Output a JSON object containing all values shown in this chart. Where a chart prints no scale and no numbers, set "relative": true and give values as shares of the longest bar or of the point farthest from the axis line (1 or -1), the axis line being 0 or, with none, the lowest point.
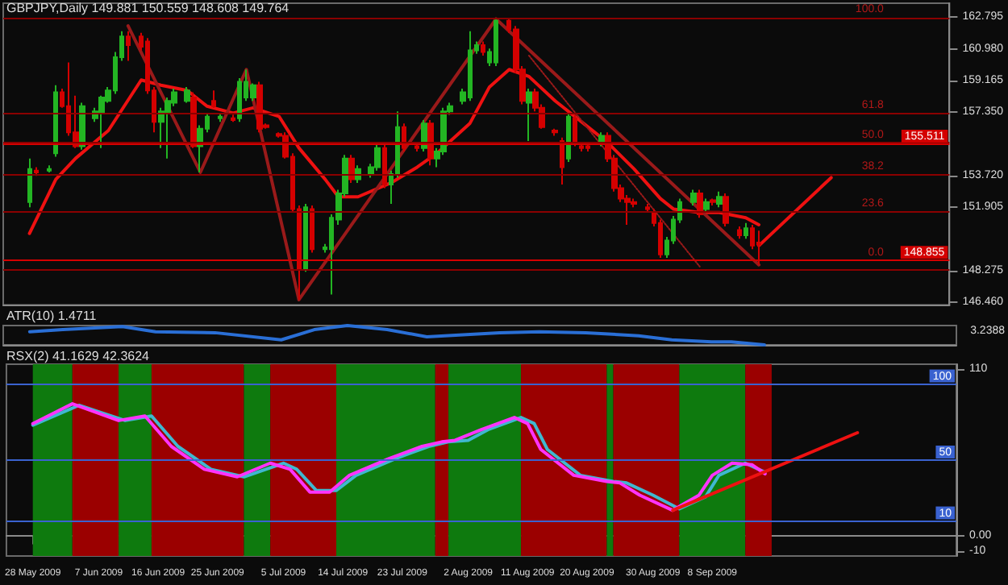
{
  "chart_data": [
    {
      "type": "candlestick",
      "title": "GBPJPY,Daily 149.881 150.559 148.608 149.764",
      "tick_labels": "y",
      "x": [
        "2009-05-28",
        "2009-05-29",
        "2009-05-31",
        "2009-06-01",
        "2009-06-02",
        "2009-06-03",
        "2009-06-04",
        "2009-06-05",
        "2009-06-07",
        "2009-06-08",
        "2009-06-09",
        "2009-06-10",
        "2009-06-11",
        "2009-06-12",
        "2009-06-14",
        "2009-06-15",
        "2009-06-16",
        "2009-06-17",
        "2009-06-18",
        "2009-06-19",
        "2009-06-21",
        "2009-06-22",
        "2009-06-23",
        "2009-06-24",
        "2009-06-25",
        "2009-06-26",
        "2009-06-28",
        "2009-06-29",
        "2009-06-30",
        "2009-07-01",
        "2009-07-02",
        "2009-07-03",
        "2009-07-05",
        "2009-07-06",
        "2009-07-07",
        "2009-07-08",
        "2009-07-09",
        "2009-07-10",
        "2009-07-12",
        "2009-07-13",
        "2009-07-14",
        "2009-07-15",
        "2009-07-16",
        "2009-07-17",
        "2009-07-19",
        "2009-07-20",
        "2009-07-21",
        "2009-07-22",
        "2009-07-23",
        "2009-07-24",
        "2009-07-26",
        "2009-07-27",
        "2009-07-28",
        "2009-07-29",
        "2009-07-30",
        "2009-07-31",
        "2009-08-02",
        "2009-08-03",
        "2009-08-04",
        "2009-08-05",
        "2009-08-06",
        "2009-08-07",
        "2009-08-09",
        "2009-08-10",
        "2009-08-11",
        "2009-08-12",
        "2009-08-13",
        "2009-08-14",
        "2009-08-16",
        "2009-08-17",
        "2009-08-18",
        "2009-08-19",
        "2009-08-20",
        "2009-08-21",
        "2009-08-23",
        "2009-08-24",
        "2009-08-25",
        "2009-08-26",
        "2009-08-27",
        "2009-08-28",
        "2009-08-30",
        "2009-08-31",
        "2009-09-01",
        "2009-09-02",
        "2009-09-03",
        "2009-09-04",
        "2009-09-06",
        "2009-09-07",
        "2009-09-08",
        "2009-09-09",
        "2009-09-10",
        "2009-09-11",
        "2009-09-13",
        "2009-09-14",
        "2009-09-15",
        "2009-09-16"
      ],
      "ohlc": [
        [
          152.2,
          154.7,
          151.9,
          154.1
        ],
        [
          154.0,
          154.2,
          153.7,
          153.9
        ],
        [
          154.0,
          154.3,
          153.9,
          154.1
        ],
        [
          155.0,
          158.9,
          154.8,
          158.5
        ],
        [
          158.5,
          158.7,
          157.6,
          157.7
        ],
        [
          157.7,
          160.2,
          156.0,
          156.2
        ],
        [
          156.2,
          158.3,
          155.3,
          155.4
        ],
        [
          155.4,
          157.9,
          155.2,
          157.7
        ],
        [
          157.0,
          157.6,
          156.8,
          157.4
        ],
        [
          157.3,
          158.3,
          155.3,
          158.2
        ],
        [
          158.0,
          158.8,
          157.9,
          158.6
        ],
        [
          158.6,
          160.8,
          158.4,
          160.5
        ],
        [
          160.5,
          162.0,
          160.3,
          161.7
        ],
        [
          161.7,
          162.0,
          160.3,
          161.2
        ],
        [
          161.7,
          161.9,
          160.9,
          161.1
        ],
        [
          161.4,
          161.6,
          158.4,
          158.6
        ],
        [
          158.6,
          158.8,
          156.2,
          156.8
        ],
        [
          156.8,
          157.6,
          155.3,
          157.4
        ],
        [
          157.3,
          158.2,
          154.7,
          158.0
        ],
        [
          157.9,
          158.7,
          157.7,
          158.5
        ],
        [
          158.0,
          158.8,
          157.9,
          158.6
        ],
        [
          158.2,
          158.5,
          155.3,
          155.4
        ],
        [
          155.4,
          156.6,
          153.9,
          156.4
        ],
        [
          156.4,
          157.3,
          156.2,
          157.1
        ],
        [
          158.0,
          158.6,
          157.6,
          157.7
        ],
        [
          157.0,
          157.3,
          156.8,
          157.1
        ],
        [
          157.0,
          157.2,
          156.8,
          156.9
        ],
        [
          157.0,
          159.3,
          156.8,
          159.1
        ],
        [
          158.2,
          159.8,
          158.0,
          159.1
        ],
        [
          158.2,
          159.0,
          158.0,
          158.9
        ],
        [
          158.9,
          159.1,
          156.2,
          156.4
        ],
        [
          156.6,
          156.7,
          156.4,
          156.5
        ],
        [
          156.1,
          156.2,
          155.9,
          156.0
        ],
        [
          156.0,
          156.2,
          154.7,
          154.8
        ],
        [
          154.8,
          155.0,
          151.6,
          151.8
        ],
        [
          151.8,
          152.0,
          146.6,
          148.4
        ],
        [
          148.4,
          152.1,
          148.2,
          151.9
        ],
        [
          151.8,
          152.0,
          149.3,
          149.5
        ],
        [
          149.5,
          149.8,
          149.3,
          149.6
        ],
        [
          149.5,
          151.5,
          146.9,
          151.3
        ],
        [
          151.2,
          152.9,
          150.9,
          152.7
        ],
        [
          152.7,
          154.9,
          152.5,
          154.7
        ],
        [
          154.7,
          154.9,
          153.3,
          153.5
        ],
        [
          153.5,
          154.3,
          153.3,
          154.1
        ],
        [
          153.8,
          154.4,
          153.6,
          154.2
        ],
        [
          154.2,
          155.6,
          154.0,
          155.3
        ],
        [
          155.3,
          155.5,
          153.0,
          153.2
        ],
        [
          153.2,
          154.0,
          152.1,
          153.8
        ],
        [
          153.8,
          157.4,
          153.6,
          156.5
        ],
        [
          156.5,
          156.7,
          155.1,
          155.3
        ],
        [
          155.4,
          155.5,
          155.1,
          155.3
        ],
        [
          155.3,
          156.9,
          155.1,
          156.7
        ],
        [
          156.7,
          156.9,
          154.3,
          154.7
        ],
        [
          154.7,
          155.3,
          154.2,
          155.1
        ],
        [
          155.1,
          157.6,
          154.9,
          157.4
        ],
        [
          157.4,
          157.9,
          157.2,
          157.7
        ],
        [
          158.0,
          158.7,
          157.8,
          158.5
        ],
        [
          158.2,
          162.0,
          158.0,
          160.9
        ],
        [
          160.9,
          161.4,
          160.7,
          161.2
        ],
        [
          161.2,
          161.4,
          160.6,
          160.8
        ],
        [
          160.2,
          161.0,
          160.0,
          160.8
        ],
        [
          160.2,
          162.7,
          160.0,
          162.6
        ],
        [
          162.6,
          162.7,
          161.9,
          162.1
        ],
        [
          162.1,
          162.3,
          159.6,
          159.8
        ],
        [
          159.8,
          160.0,
          157.8,
          158.0
        ],
        [
          157.9,
          158.7,
          155.7,
          158.5
        ],
        [
          158.5,
          158.7,
          157.4,
          157.6
        ],
        [
          157.6,
          157.8,
          156.4,
          156.5
        ],
        [
          156.3,
          156.4,
          156.0,
          156.2
        ],
        [
          155.7,
          155.9,
          153.2,
          154.2
        ],
        [
          154.7,
          157.3,
          154.5,
          157.1
        ],
        [
          157.0,
          157.2,
          155.4,
          155.6
        ],
        [
          155.4,
          155.6,
          155.1,
          155.3
        ],
        [
          155.4,
          155.5,
          155.1,
          155.3
        ],
        [
          155.6,
          156.2,
          155.4,
          156.0
        ],
        [
          156.0,
          156.2,
          154.5,
          154.7
        ],
        [
          154.7,
          154.9,
          152.8,
          153.0
        ],
        [
          153.0,
          153.2,
          152.2,
          152.4
        ],
        [
          152.4,
          152.6,
          150.9,
          152.2
        ],
        [
          152.2,
          152.4,
          151.9,
          152.1
        ],
        [
          151.9,
          152.1,
          151.6,
          151.8
        ],
        [
          151.6,
          151.8,
          150.8,
          151.0
        ],
        [
          151.0,
          151.2,
          149.0,
          149.2
        ],
        [
          149.2,
          150.2,
          149.0,
          150.0
        ],
        [
          150.0,
          151.4,
          149.8,
          151.2
        ],
        [
          151.2,
          152.4,
          151.0,
          152.2
        ],
        [
          152.2,
          152.9,
          152.0,
          152.7
        ],
        [
          152.7,
          152.9,
          151.3,
          151.5
        ],
        [
          151.8,
          152.4,
          151.6,
          152.2
        ],
        [
          152.3,
          152.4,
          152.0,
          152.2
        ],
        [
          152.1,
          152.8,
          151.9,
          152.5
        ],
        [
          152.5,
          152.7,
          150.8,
          151.0
        ],
        [
          150.6,
          150.8,
          150.1,
          150.3
        ],
        [
          150.3,
          151.0,
          150.1,
          150.7
        ],
        [
          150.7,
          150.9,
          149.5,
          149.7
        ],
        [
          149.881,
          150.559,
          148.608,
          149.764
        ]
      ],
      "colors": [
        "#23b523",
        "#d40000",
        "#23b523",
        "#23b523",
        "#d40000",
        "#d40000",
        "#d40000",
        "#23b523",
        "#23b523",
        "#23b523",
        "#23b523",
        "#23b523",
        "#23b523",
        "#d40000",
        "#d40000",
        "#d40000",
        "#d40000",
        "#23b523",
        "#23b523",
        "#23b523",
        "#23b523",
        "#d40000",
        "#23b523",
        "#23b523",
        "#d40000",
        "#23b523",
        "#d40000",
        "#23b523",
        "#23b523",
        "#23b523",
        "#d40000",
        "#d40000",
        "#d40000",
        "#d40000",
        "#d40000",
        "#d40000",
        "#23b523",
        "#d40000",
        "#23b523",
        "#23b523",
        "#23b523",
        "#23b523",
        "#d40000",
        "#23b523",
        "#23b523",
        "#23b523",
        "#d40000",
        "#23b523",
        "#23b523",
        "#d40000",
        "#d40000",
        "#23b523",
        "#d40000",
        "#23b523",
        "#23b523",
        "#23b523",
        "#23b523",
        "#23b523",
        "#23b523",
        "#d40000",
        "#23b523",
        "#23b523",
        "#d40000",
        "#d40000",
        "#d40000",
        "#23b523",
        "#d40000",
        "#d40000",
        "#d40000",
        "#d40000",
        "#23b523",
        "#d40000",
        "#d40000",
        "#d40000",
        "#23b523",
        "#d40000",
        "#d40000",
        "#d40000",
        "#d40000",
        "#d40000",
        "#d40000",
        "#d40000",
        "#d40000",
        "#23b523",
        "#23b523",
        "#23b523",
        "#23b523",
        "#d40000",
        "#23b523",
        "#d40000",
        "#23b523",
        "#d40000",
        "#d40000",
        "#23b523",
        "#d40000",
        "#d40000"
      ],
      "xlim": [
        "2009-05-24",
        "2009-10-15"
      ],
      "ylim": [
        146.3,
        163.6
      ],
      "yticks": [
        {
          "value": 162.795,
          "label": "162.795"
        },
        {
          "value": 160.98,
          "label": "160.980"
        },
        {
          "value": 159.165,
          "label": "159.165"
        },
        {
          "value": 157.35,
          "label": "157.350"
        },
        {
          "value": 153.72,
          "label": "153.720"
        },
        {
          "value": 151.905,
          "label": "151.905"
        },
        {
          "value": 148.275,
          "label": "148.275"
        },
        {
          "value": 146.46,
          "label": "146.460"
        }
      ],
      "series": [
        {
          "type": "line",
          "color": "#ee1111",
          "x": [
            "2009-05-28",
            "2009-06-01",
            "2009-06-04",
            "2009-06-09",
            "2009-06-14",
            "2009-06-17",
            "2009-06-21",
            "2009-06-24",
            "2009-06-28",
            "2009-07-01",
            "2009-07-05",
            "2009-07-08",
            "2009-07-12",
            "2009-07-14",
            "2009-07-17",
            "2009-07-22",
            "2009-07-26",
            "2009-07-29",
            "2009-08-03",
            "2009-08-06",
            "2009-08-09",
            "2009-08-12",
            "2009-08-16",
            "2009-08-20",
            "2009-08-24",
            "2009-08-28",
            "2009-09-01",
            "2009-09-03",
            "2009-09-07",
            "2009-09-10",
            "2009-09-14",
            "2009-09-16"
          ],
          "values": [
            150.4,
            153.5,
            154.7,
            156.3,
            159.2,
            158.9,
            158.6,
            157.7,
            157.3,
            157.6,
            157.1,
            155.3,
            153.5,
            152.5,
            152.5,
            153.3,
            154.2,
            155.0,
            156.7,
            158.8,
            159.8,
            159.4,
            158.0,
            156.8,
            155.6,
            154.1,
            152.4,
            151.8,
            151.6,
            151.6,
            151.3,
            150.9
          ]
        },
        {
          "type": "line",
          "color": "#9a1a1a",
          "x": [
            "2009-06-12",
            "2009-06-23",
            "2009-06-30",
            "2009-07-08",
            "2009-08-07",
            "2009-09-16"
          ],
          "values": [
            162.3,
            153.9,
            159.8,
            146.6,
            162.7,
            148.6
          ]
        },
        {
          "type": "line",
          "color": "#9a1a1a",
          "line_style": "dotted",
          "x": [
            "2009-08-12",
            "2009-09-07"
          ],
          "values": [
            160.6,
            148.5
          ]
        },
        {
          "type": "line",
          "color": "#ee1111",
          "x": [
            "2009-09-16",
            "2009-09-27"
          ],
          "values": [
            149.7,
            153.6
          ]
        }
      ],
      "ref_lines": [
        {
          "axis": "y",
          "value": 162.795,
          "color": "#8b0000"
        },
        {
          "axis": "y",
          "value": 157.3,
          "color": "#8b0000"
        },
        {
          "axis": "y",
          "value": 155.6,
          "color": "#8b0000"
        },
        {
          "axis": "y",
          "value": 155.511,
          "label": "155.511",
          "color": "#d40000"
        },
        {
          "axis": "y",
          "value": 153.8,
          "color": "#8b0000"
        },
        {
          "axis": "y",
          "value": 151.7,
          "color": "#8b0000"
        },
        {
          "axis": "y",
          "value": 148.855,
          "label": "148.855",
          "color": "#d40000"
        },
        {
          "axis": "y",
          "value": 148.3,
          "color": "#8b0000"
        }
      ],
      "annotations": [
        {
          "text": "100.0",
          "x": "2009-10-05",
          "y": 162.795
        },
        {
          "text": "61.8",
          "x": "2009-10-05",
          "y": 157.3
        },
        {
          "text": "50.0",
          "x": "2009-10-05",
          "y": 155.6
        },
        {
          "text": "38.2",
          "x": "2009-10-05",
          "y": 153.8
        },
        {
          "text": "23.6",
          "x": "2009-10-05",
          "y": 151.7
        },
        {
          "text": "0.0",
          "x": "2009-10-05",
          "y": 148.855
        }
      ]
    },
    {
      "type": "line",
      "title": "ATR(10) 1.4711",
      "relative": true,
      "tick_labels": "y",
      "annotations": [
        "3.2388"
      ],
      "xlim": [
        "2009-05-24",
        "2009-10-15"
      ],
      "series": [
        {
          "color": "#2a6fd6",
          "x": [
            "2009-05-28",
            "2009-06-02",
            "2009-06-11",
            "2009-06-16",
            "2009-06-25",
            "2009-07-05",
            "2009-07-10",
            "2009-07-15",
            "2009-07-21",
            "2009-07-27",
            "2009-08-02",
            "2009-08-07",
            "2009-08-13",
            "2009-08-20",
            "2009-08-28",
            "2009-09-02",
            "2009-09-08",
            "2009-09-11",
            "2009-09-16"
          ],
          "values": [
            0.68,
            0.79,
            0.95,
            0.68,
            0.63,
            0.26,
            0.79,
            1,
            0.79,
            0.42,
            0.53,
            0.63,
            0.68,
            0.63,
            0.47,
            0.26,
            0.16,
            0.16,
            0
          ]
        }
      ]
    },
    {
      "type": "line",
      "title": "RSX(2) 41.1629 42.3624",
      "xlim": [
        "2009-05-24",
        "2009-10-15"
      ],
      "xticks": [
        {
          "value": "2009-05-28",
          "label": "28 May 2009"
        },
        {
          "value": "2009-06-07",
          "label": "7 Jun 2009"
        },
        {
          "value": "2009-06-16",
          "label": "16 Jun 2009"
        },
        {
          "value": "2009-06-25",
          "label": "25 Jun 2009"
        },
        {
          "value": "2009-07-05",
          "label": "5 Jul 2009"
        },
        {
          "value": "2009-07-14",
          "label": "14 Jul 2009"
        },
        {
          "value": "2009-07-23",
          "label": "23 Jul 2009"
        },
        {
          "value": "2009-08-02",
          "label": "2 Aug 2009"
        },
        {
          "value": "2009-08-11",
          "label": "11 Aug 2009"
        },
        {
          "value": "2009-08-20",
          "label": "20 Aug 2009"
        },
        {
          "value": "2009-08-30",
          "label": "30 Aug 2009"
        },
        {
          "value": "2009-09-08",
          "label": "8 Sep 2009"
        }
      ],
      "ylim": [
        -13,
        113
      ],
      "yticks": [
        110,
        {
          "value": 0,
          "label": "0.00"
        },
        -10
      ],
      "series": [
        {
          "color": "#3fb8d0",
          "x": [
            "2009-05-28",
            "2009-06-04",
            "2009-06-11",
            "2009-06-15",
            "2009-06-19",
            "2009-06-24",
            "2009-06-29",
            "2009-07-05",
            "2009-07-07",
            "2009-07-10",
            "2009-07-13",
            "2009-07-16",
            "2009-07-22",
            "2009-07-27",
            "2009-07-30",
            "2009-08-02",
            "2009-08-05",
            "2009-08-10",
            "2009-08-12",
            "2009-08-14",
            "2009-08-19",
            "2009-08-24",
            "2009-08-26",
            "2009-08-30",
            "2009-09-03",
            "2009-09-07",
            "2009-09-09",
            "2009-09-13",
            "2009-09-16"
          ],
          "values": [
            73,
            86,
            76,
            79,
            59,
            44,
            39,
            48,
            44,
            30,
            30,
            40,
            51,
            59,
            62,
            63,
            70,
            78,
            74,
            57,
            40,
            36,
            35,
            27,
            18,
            26,
            40,
            48,
            42
          ]
        },
        {
          "color": "#ff33ff",
          "x": [
            "2009-05-28",
            "2009-06-03",
            "2009-06-10",
            "2009-06-14",
            "2009-06-18",
            "2009-06-23",
            "2009-06-28",
            "2009-07-03",
            "2009-07-06",
            "2009-07-09",
            "2009-07-12",
            "2009-07-15",
            "2009-07-21",
            "2009-07-26",
            "2009-07-29",
            "2009-07-31",
            "2009-08-04",
            "2009-08-09",
            "2009-08-11",
            "2009-08-13",
            "2009-08-18",
            "2009-08-23",
            "2009-08-25",
            "2009-08-28",
            "2009-09-02",
            "2009-09-06",
            "2009-09-08",
            "2009-09-11",
            "2009-09-14",
            "2009-09-16"
          ],
          "values": [
            74,
            87,
            76,
            79,
            59,
            44,
            39,
            48,
            44,
            29,
            29,
            40,
            51,
            59,
            62,
            63,
            70,
            78,
            74,
            57,
            40,
            36,
            35,
            27,
            17,
            27,
            40,
            48,
            47,
            41
          ]
        },
        {
          "color": "#ee1111",
          "x": [
            "2009-09-02",
            "2009-09-30"
          ],
          "values": [
            17,
            68
          ]
        }
      ],
      "bands": [
        {
          "axis": "x",
          "from": "2009-05-28",
          "to": "2009-06-03",
          "color": "#0e7a0e"
        },
        {
          "axis": "x",
          "from": "2009-06-03",
          "to": "2009-06-10",
          "color": "#9b0000"
        },
        {
          "axis": "x",
          "from": "2009-06-10",
          "to": "2009-06-15",
          "color": "#0e7a0e"
        },
        {
          "axis": "x",
          "from": "2009-06-15",
          "to": "2009-06-29",
          "color": "#9b0000"
        },
        {
          "axis": "x",
          "from": "2009-06-29",
          "to": "2009-07-03",
          "color": "#0e7a0e"
        },
        {
          "axis": "x",
          "from": "2009-07-03",
          "to": "2009-07-13",
          "color": "#9b0000"
        },
        {
          "axis": "x",
          "from": "2009-07-13",
          "to": "2009-07-28",
          "color": "#0e7a0e"
        },
        {
          "axis": "x",
          "from": "2009-07-28",
          "to": "2009-07-30",
          "color": "#9b0000"
        },
        {
          "axis": "x",
          "from": "2009-07-30",
          "to": "2009-08-10",
          "color": "#0e7a0e"
        },
        {
          "axis": "x",
          "from": "2009-08-10",
          "to": "2009-08-23",
          "color": "#9b0000"
        },
        {
          "axis": "x",
          "from": "2009-08-23",
          "to": "2009-08-24",
          "color": "#0e7a0e"
        },
        {
          "axis": "x",
          "from": "2009-08-24",
          "to": "2009-09-03",
          "color": "#9b0000"
        },
        {
          "axis": "x",
          "from": "2009-09-03",
          "to": "2009-09-13",
          "color": "#0e7a0e"
        },
        {
          "axis": "x",
          "from": "2009-09-13",
          "to": "2009-09-17",
          "color": "#9b0000"
        }
      ],
      "ref_lines": [
        {
          "axis": "y",
          "value": 100,
          "label": "100",
          "color": "#3a62d0"
        },
        {
          "axis": "y",
          "value": 50,
          "label": "50",
          "color": "#3a62d0"
        },
        {
          "axis": "y",
          "value": 10,
          "label": "10",
          "color": "#3a62d0"
        }
      ]
    }
  ]
}
